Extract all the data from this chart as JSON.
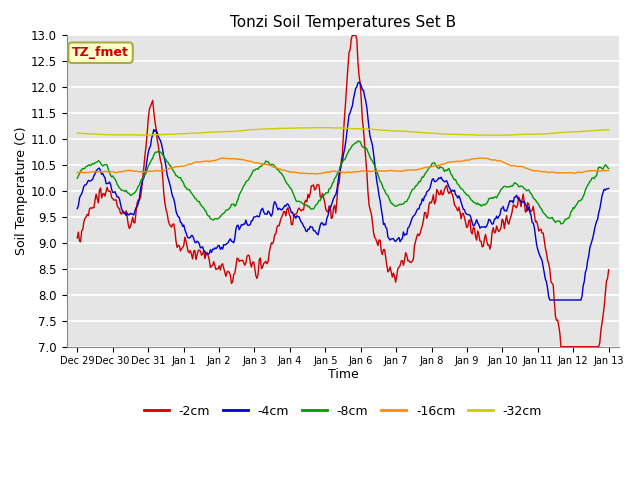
{
  "title": "Tonzi Soil Temperatures Set B",
  "xlabel": "Time",
  "ylabel": "Soil Temperature (C)",
  "ylim": [
    7.0,
    13.0
  ],
  "yticks": [
    7.0,
    7.5,
    8.0,
    8.5,
    9.0,
    9.5,
    10.0,
    10.5,
    11.0,
    11.5,
    12.0,
    12.5,
    13.0
  ],
  "colors": {
    "-2cm": "#cc0000",
    "-4cm": "#0000cc",
    "-8cm": "#009900",
    "-16cm": "#ff8800",
    "-32cm": "#cccc00"
  },
  "legend_label": "TZ_fmet",
  "legend_box_facecolor": "#ffffcc",
  "legend_box_edgecolor": "#aaaa44",
  "legend_text_color": "#cc0000",
  "bg_color": "#e5e5e5",
  "n_points": 480,
  "line_width": 1.0,
  "xtick_labels": [
    "Dec 29",
    "Dec 30",
    "Dec 31",
    "Jan 1",
    "Jan 2",
    "Jan 3",
    "Jan 4",
    "Jan 5",
    "Jan 6",
    "Jan 7",
    "Jan 8",
    "Jan 9",
    "Jan 10",
    "Jan 11",
    "Jan 12",
    "Jan 13"
  ]
}
